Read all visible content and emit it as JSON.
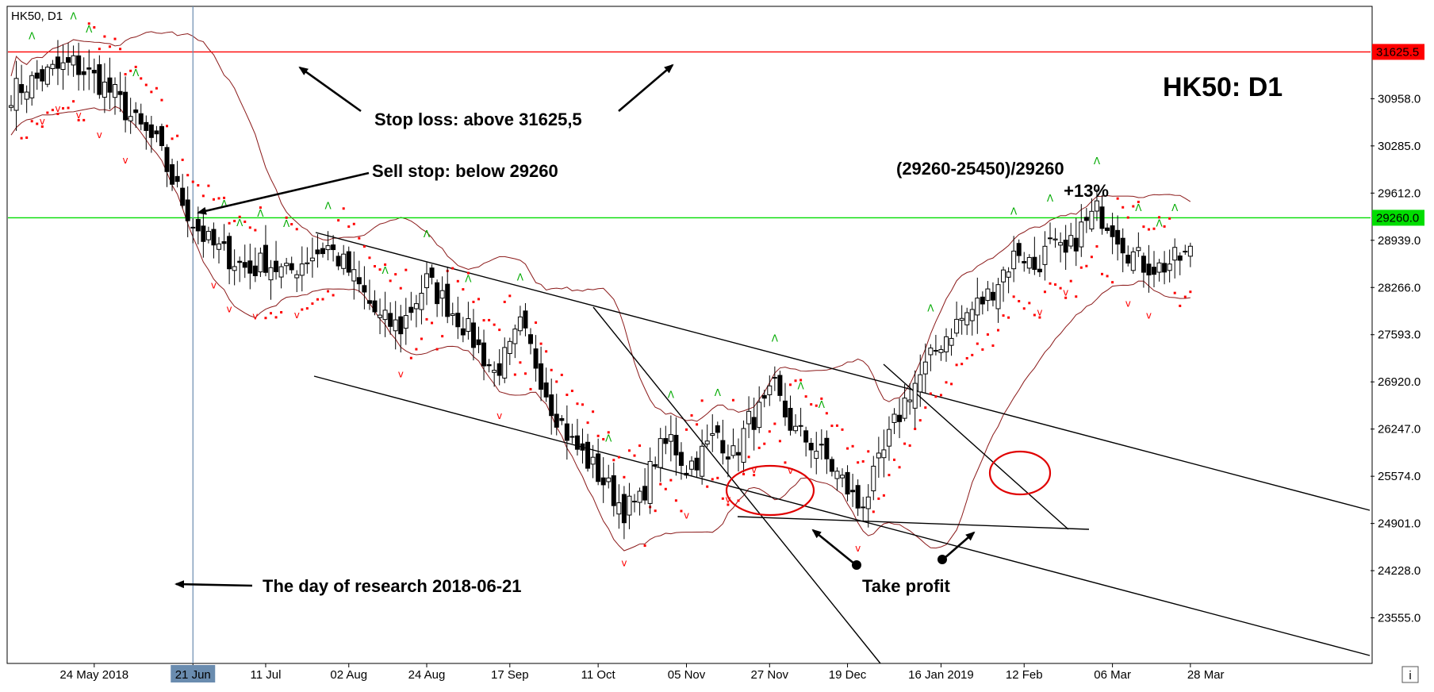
{
  "chart_data": {
    "type": "candlestick",
    "symbol_label": "HK50, D1",
    "title": "HK50: D1",
    "y_ticks": [
      "30958.0",
      "30285.0",
      "29612.0",
      "28939.0",
      "28266.0",
      "27593.0",
      "26920.0",
      "26247.0",
      "25574.0",
      "24901.0",
      "24228.0",
      "23555.0"
    ],
    "y_tick_values": [
      30958,
      30285,
      29612,
      28939,
      28266,
      27593,
      26920,
      26247,
      25574,
      24901,
      24228,
      23555
    ],
    "ylim": [
      22905,
      32275
    ],
    "x_ticks": [
      "24 May 2018",
      "21 Jun",
      "11 Jul",
      "02 Aug",
      "24 Aug",
      "17 Sep",
      "11 Oct",
      "05 Nov",
      "27 Nov",
      "19 Dec",
      "16 Jan 2019",
      "12 Feb",
      "06 Mar",
      "28 Mar"
    ],
    "x_tick_bars": [
      16,
      35,
      49,
      65,
      80,
      96,
      113,
      130,
      146,
      161,
      179,
      195,
      212,
      227
    ],
    "n_bars": 228,
    "research_bar": 35,
    "close_path": [
      [
        0,
        31050
      ],
      [
        4,
        31200
      ],
      [
        8,
        31350
      ],
      [
        12,
        31450
      ],
      [
        16,
        31250
      ],
      [
        20,
        31000
      ],
      [
        24,
        30600
      ],
      [
        28,
        30300
      ],
      [
        31,
        29800
      ],
      [
        35,
        29200
      ],
      [
        38,
        28900
      ],
      [
        42,
        28700
      ],
      [
        46,
        28500
      ],
      [
        49,
        28650
      ],
      [
        53,
        28450
      ],
      [
        57,
        28700
      ],
      [
        61,
        28850
      ],
      [
        65,
        28500
      ],
      [
        68,
        28150
      ],
      [
        71,
        27800
      ],
      [
        75,
        27700
      ],
      [
        78,
        28100
      ],
      [
        80,
        28350
      ],
      [
        83,
        28100
      ],
      [
        87,
        27750
      ],
      [
        90,
        27400
      ],
      [
        93,
        27050
      ],
      [
        96,
        27350
      ],
      [
        98,
        27700
      ],
      [
        101,
        27200
      ],
      [
        104,
        26600
      ],
      [
        108,
        26050
      ],
      [
        112,
        25700
      ],
      [
        115,
        25400
      ],
      [
        118,
        25100
      ],
      [
        121,
        25200
      ],
      [
        124,
        25850
      ],
      [
        127,
        26100
      ],
      [
        130,
        25700
      ],
      [
        133,
        25900
      ],
      [
        136,
        26200
      ],
      [
        139,
        25850
      ],
      [
        142,
        26350
      ],
      [
        145,
        26550
      ],
      [
        147,
        26800
      ],
      [
        149,
        26450
      ],
      [
        151,
        26200
      ],
      [
        154,
        26050
      ],
      [
        157,
        25800
      ],
      [
        160,
        25500
      ],
      [
        163,
        25150
      ],
      [
        165,
        25350
      ],
      [
        168,
        25900
      ],
      [
        170,
        26300
      ],
      [
        173,
        26800
      ],
      [
        176,
        27100
      ],
      [
        179,
        27500
      ],
      [
        182,
        27750
      ],
      [
        185,
        27950
      ],
      [
        188,
        28150
      ],
      [
        191,
        28500
      ],
      [
        194,
        28800
      ],
      [
        197,
        28550
      ],
      [
        200,
        28850
      ],
      [
        203,
        28700
      ],
      [
        206,
        29100
      ],
      [
        209,
        29350
      ],
      [
        212,
        29150
      ],
      [
        215,
        28800
      ],
      [
        218,
        28600
      ],
      [
        221,
        28550
      ],
      [
        224,
        28650
      ],
      [
        227,
        28750
      ]
    ],
    "horizontal_levels": [
      {
        "label": "31625.5",
        "value": 31625.5,
        "color": "#ff0000"
      },
      {
        "label": "29260.0",
        "value": 29260.0,
        "color": "#00dd00"
      }
    ],
    "annotations": {
      "stop_loss": "Stop loss: above 31625,5",
      "sell_stop": "Sell stop: below 29260",
      "calc_line1": "(29260-25450)/29260",
      "calc_line2": "+13%",
      "research_day": "The day of research 2018-06-21",
      "take_profit": "Take profit"
    },
    "colors": {
      "stop_loss_line": "#ff0000",
      "sell_stop_line": "#00dd00",
      "bollinger": "#8b1a1a",
      "parabolic_sar": "#ff0000",
      "fractal_up": "#00aa00",
      "fractal_down": "#ff0000",
      "candle_up": "#ffffff",
      "candle_down": "#000000",
      "channel_lines": "#000000",
      "ellipse": "#e00000",
      "research_line": "#6a8caf"
    },
    "grid": false
  }
}
